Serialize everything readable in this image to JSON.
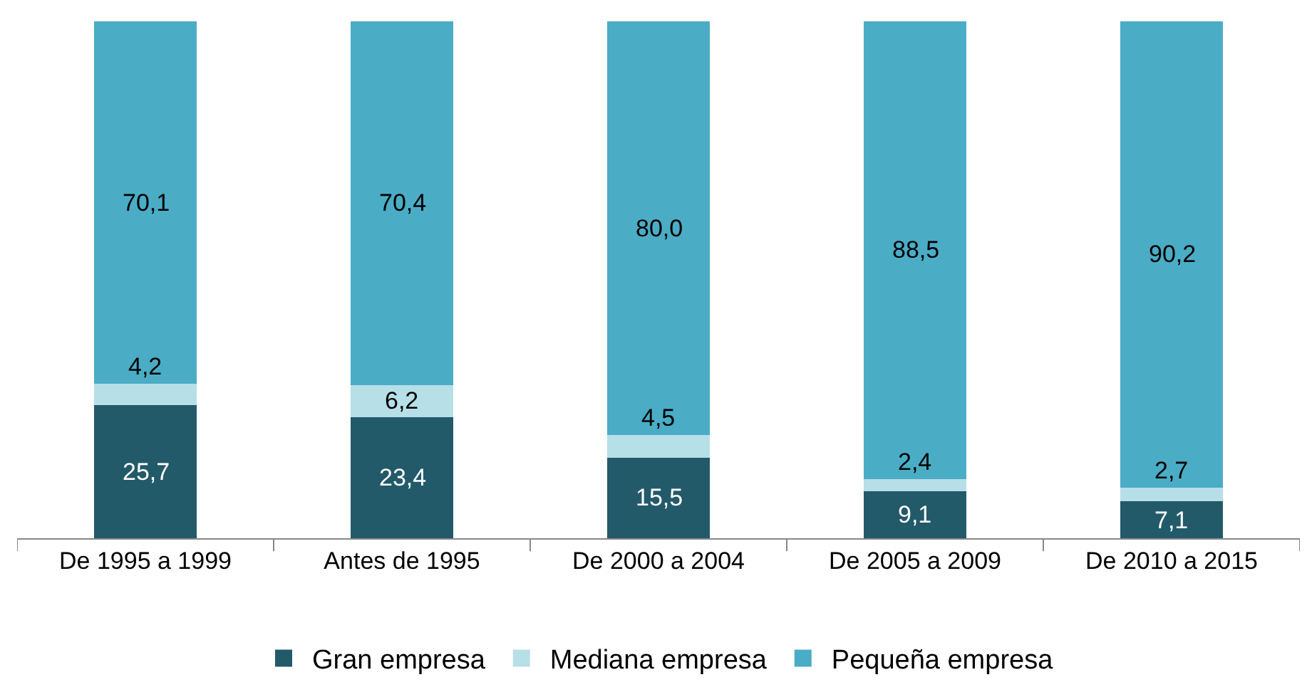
{
  "chart_data": {
    "type": "bar",
    "stacked": true,
    "legend": "bottom",
    "categories": [
      "De 1995 a 1999",
      "Antes de 1995",
      "De 2000 a 2004",
      "De 2005 a 2009",
      "De 2010 a 2015"
    ],
    "series": [
      {
        "name": "Gran empresa",
        "color": "#225a6a",
        "values": [
          25.7,
          23.4,
          15.5,
          9.1,
          7.1
        ],
        "value_labels": [
          "25,7",
          "23,4",
          "15,5",
          "9,1",
          "7,1"
        ]
      },
      {
        "name": "Mediana empresa",
        "color": "#b7dfe8",
        "values": [
          4.2,
          6.2,
          4.5,
          2.4,
          2.7
        ],
        "value_labels": [
          "4,2",
          "6,2",
          "4,5",
          "2,4",
          "2,7"
        ]
      },
      {
        "name": "Pequeña empresa",
        "color": "#4bacc6",
        "values": [
          70.1,
          70.4,
          80.0,
          88.5,
          90.2
        ],
        "value_labels": [
          "70,1",
          "70,4",
          "80,0",
          "88,5",
          "90,2"
        ]
      }
    ]
  }
}
